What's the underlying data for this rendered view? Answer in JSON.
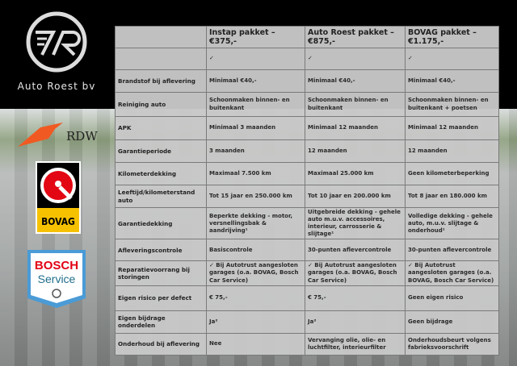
{
  "brand": {
    "name": "Auto Roest bv",
    "logo_letters": "7R"
  },
  "logos": [
    {
      "name": "RDW",
      "text": "RDW",
      "color": "#f05a22"
    },
    {
      "name": "BOVAG",
      "text": "BOVAG",
      "color": "#e30613"
    },
    {
      "name": "Bosch Service",
      "text": [
        "BOSCH",
        "Service"
      ],
      "color": "#e20015"
    }
  ],
  "table": {
    "headers": [
      "",
      "Instap pakket – €375,-",
      "Auto Roest pakket – €875,-",
      "BOVAG pakket – €1.175,-"
    ],
    "rows": [
      {
        "label": "",
        "cells": [
          "✓",
          "✓",
          "✓"
        ]
      },
      {
        "label": "Brandstof bij aflevering",
        "cells": [
          "Minimaal €40,-",
          "Minimaal €40,-",
          "Minimaal €40,-"
        ]
      },
      {
        "label": "Reiniging auto",
        "cells": [
          "Schoonmaken binnen- en buitenkant",
          "Schoonmaken binnen- en buitenkant",
          "Schoonmaken binnen- en buitenkant + poetsen"
        ]
      },
      {
        "label": "APK",
        "cells": [
          "Minimaal 3 maanden",
          "Minimaal 12 maanden",
          "Minimaal 12 maanden"
        ]
      },
      {
        "label": "Garantieperiode",
        "cells": [
          "3 maanden",
          "12 maanden",
          "12 maanden"
        ]
      },
      {
        "label": "Kilometerdekking",
        "cells": [
          "Maximaal 7.500 km",
          "Maximaal 25.000 km",
          "Geen kilometerbeperking"
        ]
      },
      {
        "label": "Leeftijd/kilometerstand auto",
        "cells": [
          "Tot 15 jaar en 250.000 km",
          "Tot 10 jaar en 200.000 km",
          "Tot 8 jaar en 180.000 km"
        ]
      },
      {
        "label": "Garantiedekking",
        "cells": [
          "Beperkte dekking - motor, versnellingsbak & aandrijving¹",
          "Uitgebreide dekking - gehele auto m.u.v. accessoires, interieur, carrosserie & slijtage¹",
          "Volledige dekking - gehele auto, m.u.v. slijtage & onderhoud¹"
        ]
      },
      {
        "label": "Afleveringscontrole",
        "cells": [
          "Basiscontrole",
          "30-punten aflevercontrole",
          "30-punten aflevercontrole"
        ]
      },
      {
        "label": "Reparatievoorrang bij storingen",
        "cells": [
          "✓ Bij Autotrust aangesloten garages (o.a. BOVAG, Bosch Car Service)",
          "✓ Bij Autotrust aangesloten garages (o.a. BOVAG, Bosch Car Service)",
          "✓ Bij Autotrust aangesloten garages (o.a. BOVAG, Bosch Car Service)"
        ]
      },
      {
        "label": "Eigen risico per defect",
        "cells": [
          "€ 75,-",
          "€ 75,-",
          "Geen eigen risico"
        ]
      },
      {
        "label": "Eigen bijdrage onderdelen",
        "cells": [
          "Ja²",
          "Ja²",
          "Geen bijdrage"
        ]
      },
      {
        "label": "Onderhoud bij aflevering",
        "cells": [
          "Nee",
          "Vervanging olie, olie- en luchtfilter, interieurfilter",
          "Onderhoudsbeurt volgens fabrieksvoorschrift"
        ]
      }
    ]
  }
}
